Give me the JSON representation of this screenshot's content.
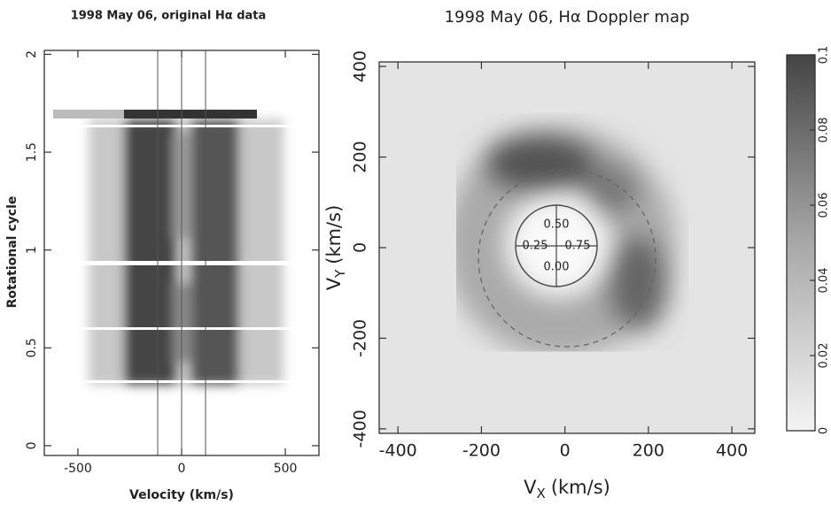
{
  "chart_data": [
    {
      "type": "spectrogram",
      "title": "1998 May 06, original Hα data",
      "x_label": "Velocity (km/s)",
      "y_label": "Rotational cycle",
      "xlim": [
        -662,
        662
      ],
      "ylim": [
        -0.05,
        2.02
      ],
      "xticks": [
        -500,
        0,
        500
      ],
      "yticks": [
        0,
        0.5,
        1,
        1.5,
        2
      ]
    },
    {
      "type": "doppler_map",
      "title": "1998 May 06, Hα Doppler map",
      "x_label": {
        "symbol": "V",
        "subscript": "X",
        "unit": "(km/s)"
      },
      "y_label": {
        "symbol": "V",
        "subscript": "Y",
        "unit": "(km/s)"
      },
      "xlim": [
        -445,
        455
      ],
      "ylim": [
        -410,
        410
      ],
      "xticks": [
        -400,
        -200,
        0,
        200,
        400
      ],
      "yticks": [
        -400,
        -200,
        0,
        200,
        400
      ],
      "phase_labels": [
        {
          "value": 0.5,
          "label": "0.50"
        },
        {
          "value": 0.25,
          "label": "0.25"
        },
        {
          "value": 0.75,
          "label": "0.75"
        },
        {
          "value": 0,
          "label": "0.00"
        }
      ]
    },
    {
      "type": "colorbar",
      "ylim": [
        0,
        0.1
      ],
      "yticks": [
        0,
        0.02,
        0.04,
        0.06,
        0.08,
        0.1
      ]
    }
  ]
}
